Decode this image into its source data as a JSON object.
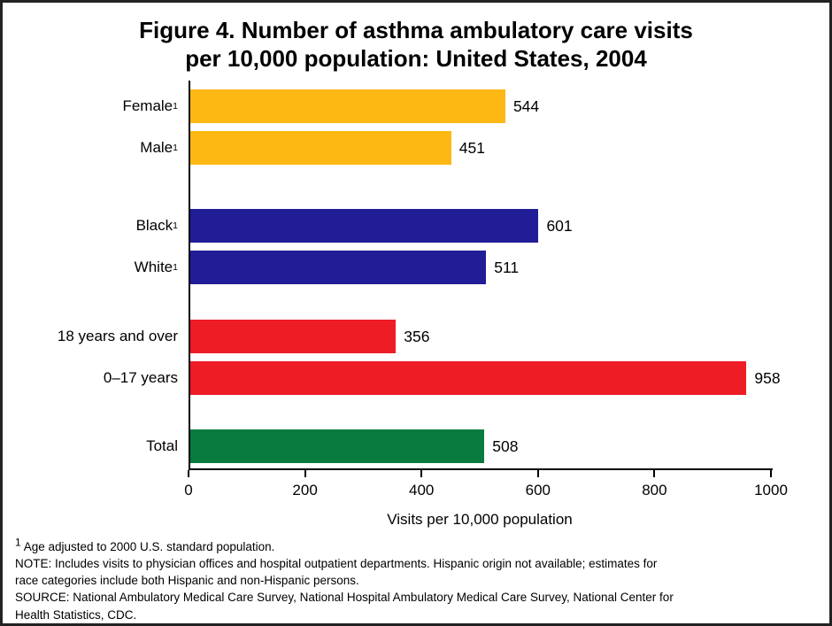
{
  "figure": {
    "title_line1": "Figure 4. Number of asthma ambulatory care visits",
    "title_line2": "per 10,000 population: United States, 2004"
  },
  "chart_data": {
    "type": "bar",
    "orientation": "horizontal",
    "title": "Figure 4. Number of asthma ambulatory care visits per 10,000 population: United States, 2004",
    "xlabel": "Visits per 10,000 population",
    "xlim": [
      0,
      1000
    ],
    "xticks": [
      0,
      200,
      400,
      600,
      800,
      1000
    ],
    "grid": false,
    "legend": "none",
    "rows": [
      {
        "label": "Female",
        "sup": "1",
        "value": 544,
        "color": "#FDB813",
        "group": "sex"
      },
      {
        "label": "Male",
        "sup": "1",
        "value": 451,
        "color": "#FDB813",
        "group": "sex"
      },
      {
        "label": "Black",
        "sup": "1",
        "value": 601,
        "color": "#201D96",
        "group": "race"
      },
      {
        "label": "White",
        "sup": "1",
        "value": 511,
        "color": "#201D96",
        "group": "race"
      },
      {
        "label": "18 years and over",
        "sup": "",
        "value": 356,
        "color": "#EE1C25",
        "group": "age"
      },
      {
        "label": "0–17 years",
        "sup": "",
        "value": 958,
        "color": "#EE1C25",
        "group": "age"
      },
      {
        "label": "Total",
        "sup": "",
        "value": 508,
        "color": "#0A7B3E",
        "group": "total"
      }
    ]
  },
  "footnotes": {
    "sup1": "1",
    "line1_text": "Age adjusted to 2000 U.S. standard population.",
    "note_line1": "NOTE: Includes visits to physician offices and hospital outpatient departments. Hispanic origin not available; estimates for",
    "note_line2": "race categories include both Hispanic and non-Hispanic persons.",
    "source_line1": "SOURCE: National Ambulatory Medical Care Survey, National Hospital Ambulatory Medical Care Survey, National Center for",
    "source_line2": "Health Statistics, CDC."
  }
}
